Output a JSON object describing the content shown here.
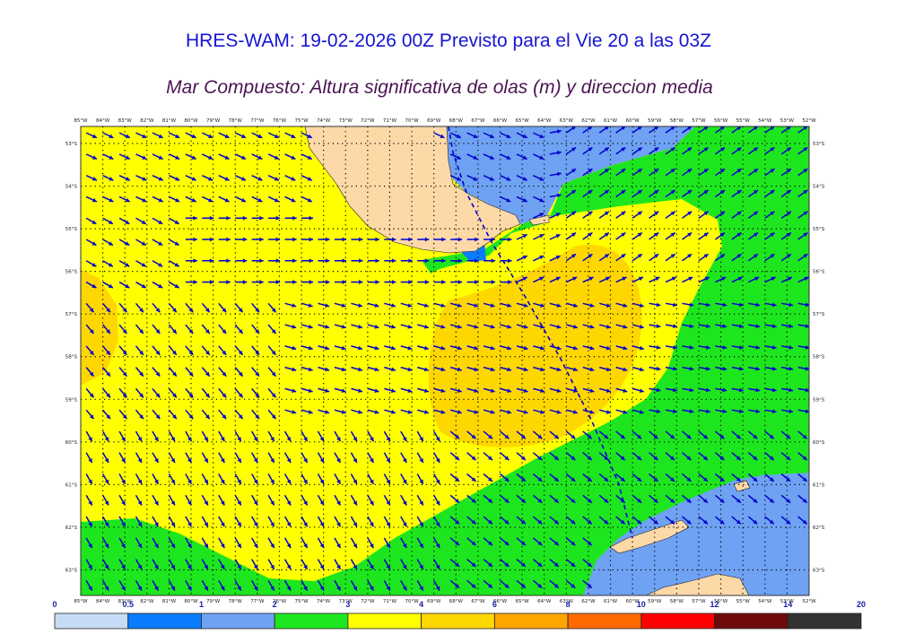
{
  "header": {
    "title": "HRES-WAM: 19-02-2026 00Z Previsto para el Vie 20 a las 03Z",
    "subtitle": "Mar Compuesto: Altura significativa de olas (m) y direccion media"
  },
  "axes": {
    "lon_labels": [
      "85°W",
      "84°W",
      "83°W",
      "82°W",
      "81°W",
      "80°W",
      "79°W",
      "78°W",
      "77°W",
      "76°W",
      "75°W",
      "74°W",
      "73°W",
      "72°W",
      "71°W",
      "70°W",
      "69°W",
      "68°W",
      "67°W",
      "66°W",
      "65°W",
      "64°W",
      "63°W",
      "62°W",
      "61°W",
      "60°W",
      "59°W",
      "58°W",
      "57°W",
      "56°W",
      "55°W",
      "54°W",
      "53°W",
      "52°W"
    ],
    "lat_labels": [
      "53°S",
      "54°S",
      "55°S",
      "56°S",
      "57°S",
      "58°S",
      "59°S",
      "60°S",
      "61°S",
      "62°S",
      "63°S"
    ],
    "lon_range": [
      -85,
      -52
    ],
    "lat_range": [
      -63.6,
      -52.6
    ]
  },
  "colorbar": {
    "ticks": [
      "0",
      "0.5",
      "1",
      "2",
      "3",
      "4",
      "6",
      "8",
      "10",
      "12",
      "14",
      "20"
    ],
    "colors": [
      "#c6dcf6",
      "#0a7cff",
      "#6fa2f3",
      "#1ee61e",
      "#ffff00",
      "#ffd700",
      "#ffa500",
      "#ff6a00",
      "#ff0000",
      "#6e0a0a",
      "#323232"
    ],
    "unit": "m"
  },
  "map_colors": {
    "band_05_1": "#0a7cff",
    "band_1_2": "#6fa2f3",
    "band_2_3": "#1ee61e",
    "band_3_4": "#ffff00",
    "band_4_6": "#ffd700",
    "land": "#fdd9a8",
    "arrow": "#0000cd"
  }
}
